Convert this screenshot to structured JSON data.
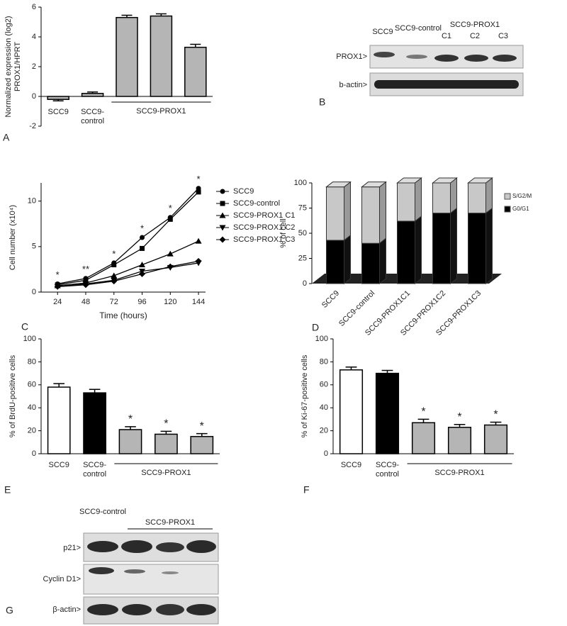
{
  "chart_data": [
    {
      "type": "bar",
      "panel": "A",
      "y_label": [
        "Normalized expression (log2)",
        "PROX1/HPRT"
      ],
      "categories": [
        "SCC9",
        "SCC9-control",
        null,
        null,
        null
      ],
      "values": [
        -0.2,
        0.2,
        5.3,
        5.4,
        3.3
      ],
      "errors": [
        0.1,
        0.1,
        0.15,
        0.15,
        0.2
      ],
      "colors": [
        "#b5b5b5",
        "#b5b5b5",
        "#b5b5b5",
        "#b5b5b5",
        "#b5b5b5"
      ],
      "group_label": "SCC9-PROX1",
      "ylim": [
        -2,
        6
      ],
      "yticks": [
        -2,
        0,
        2,
        4,
        6
      ]
    },
    {
      "type": "line",
      "panel": "C",
      "y_label": [
        "Cell number (x10⁴)"
      ],
      "x_label": "Time (hours)",
      "x": [
        24,
        48,
        72,
        96,
        120,
        144
      ],
      "series": [
        {
          "name": "SCC9",
          "color": "#000000",
          "marker": "circle",
          "values": [
            0.9,
            1.5,
            3.2,
            6.0,
            8.2,
            11.4
          ]
        },
        {
          "name": "SCC9-control",
          "color": "#000000",
          "marker": "square",
          "values": [
            0.8,
            1.3,
            3.0,
            4.8,
            8.0,
            11.0
          ]
        },
        {
          "name": "SCC9-PROX1 C1",
          "color": "#000000",
          "marker": "triangle",
          "values": [
            0.7,
            1.0,
            1.8,
            3.0,
            4.2,
            5.6
          ]
        },
        {
          "name": "SCC9-PROX1 C2",
          "color": "#000000",
          "marker": "triangle-down",
          "values": [
            0.6,
            0.9,
            1.3,
            2.3,
            2.7,
            3.2
          ]
        },
        {
          "name": "SCC9-PROX1 C3",
          "color": "#000000",
          "marker": "diamond",
          "values": [
            0.6,
            0.8,
            1.2,
            2.0,
            2.8,
            3.4
          ]
        }
      ],
      "significance": [
        "*",
        "**",
        "*",
        "*",
        "*",
        "*"
      ],
      "xlim": [
        10,
        150
      ],
      "xticks": [
        24,
        48,
        72,
        96,
        120,
        144
      ],
      "ylim": [
        0,
        12
      ],
      "yticks": [
        0,
        5,
        10
      ]
    },
    {
      "type": "stacked_bar",
      "panel": "D",
      "y_label": [
        "% of cell"
      ],
      "categories": [
        "SCC9",
        "SCC9-control",
        "SCC9-PROX1C1",
        "SCC9-PROX1C2",
        "SCC9-PROX1C3"
      ],
      "series": [
        {
          "name": "G0/G1",
          "color": "#000000",
          "values": [
            43,
            40,
            62,
            70,
            70
          ]
        },
        {
          "name": "S/G2/M",
          "color": "#c8c8c8",
          "values": [
            53,
            56,
            38,
            30,
            30
          ]
        }
      ],
      "ylim": [
        0,
        100
      ],
      "yticks": [
        0,
        25,
        50,
        75,
        100
      ]
    },
    {
      "type": "bar",
      "panel": "E",
      "y_label": [
        "% of BrdU-positive cells"
      ],
      "categories": [
        "SCC9",
        "SCC9-control",
        null,
        null,
        null
      ],
      "values": [
        58,
        53,
        21,
        17,
        15
      ],
      "errors": [
        3,
        3,
        2.5,
        2.5,
        2.5
      ],
      "colors": [
        "#ffffff",
        "#000000",
        "#b5b5b5",
        "#b5b5b5",
        "#b5b5b5"
      ],
      "significance": [
        null,
        null,
        "*",
        "*",
        "*"
      ],
      "group_label": "SCC9-PROX1",
      "ylim": [
        0,
        100
      ],
      "yticks": [
        0,
        20,
        40,
        60,
        80,
        100
      ]
    },
    {
      "type": "bar",
      "panel": "F",
      "y_label": [
        "% of Ki-67-positive cells"
      ],
      "categories": [
        "SCC9",
        "SCC9-control",
        null,
        null,
        null
      ],
      "values": [
        73,
        70,
        27,
        23,
        25
      ],
      "errors": [
        2.5,
        2.5,
        3,
        2.5,
        2.5
      ],
      "colors": [
        "#ffffff",
        "#000000",
        "#b5b5b5",
        "#b5b5b5",
        "#b5b5b5"
      ],
      "significance": [
        null,
        null,
        "*",
        "*",
        "*"
      ],
      "group_label": "SCC9-PROX1",
      "ylim": [
        0,
        100
      ],
      "yticks": [
        0,
        20,
        40,
        60,
        80,
        100
      ]
    }
  ],
  "blots": {
    "B": {
      "panel": "B",
      "lanes": [
        "SCC9",
        "SCC9-control"
      ],
      "group": "SCC9-PROX1",
      "clones": [
        "C1",
        "C2",
        "C3"
      ],
      "rows": [
        "PROX1>",
        "b-actin>"
      ]
    },
    "G": {
      "panel": "G",
      "lane": "SCC9-control",
      "group": "SCC9-PROX1",
      "rows": [
        "p21>",
        "Cyclin D1>",
        "β-actin>"
      ]
    }
  }
}
